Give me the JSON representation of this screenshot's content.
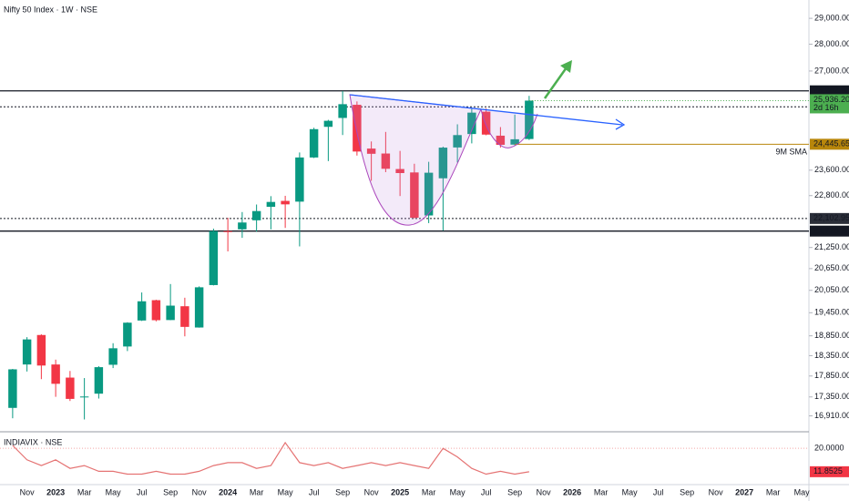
{
  "chart_data": {
    "type": "candlestick",
    "title": "Nifty 50 Index · 1W · NSE",
    "log_scale": true,
    "categories": [
      null,
      "Nov",
      null,
      "2023",
      null,
      "Mar",
      null,
      "May",
      null,
      "Jul",
      null,
      "Sep",
      null,
      "Nov",
      null,
      "2024",
      null,
      "Mar",
      null,
      "May",
      null,
      "Jul",
      null,
      "Sep",
      null,
      "Nov",
      null,
      "2025",
      null,
      "Mar",
      null,
      "May",
      null,
      "Jul",
      null,
      "Sep",
      null,
      "Nov",
      null,
      "2026",
      null,
      "Mar",
      null,
      "May",
      null,
      "Jul",
      null,
      "Sep",
      null,
      "Nov",
      null,
      "2027",
      null,
      "Mar",
      null,
      "May"
    ],
    "open": [
      17094,
      18131,
      18871,
      18131,
      17811,
      17360,
      17427,
      18124,
      18579,
      19246,
      19784,
      19258,
      19622,
      19064,
      20194,
      21727,
      21780,
      22049,
      22455,
      22637,
      22614,
      24010,
      25030,
      25333,
      25789,
      24302,
      24140,
      23637,
      23528,
      22194,
      23342,
      24339,
      24787,
      25550,
      24731,
      24433,
      24620,
      null,
      null,
      null,
      null,
      null,
      null,
      null,
      null,
      null,
      null,
      null,
      null,
      null,
      null,
      null,
      null,
      null,
      null,
      null
    ],
    "high": [
      18022,
      18816,
      18888,
      18251,
      17972,
      17800,
      18089,
      18662,
      19201,
      19992,
      19796,
      20222,
      19850,
      20158,
      21801,
      22125,
      22297,
      22526,
      22783,
      22794,
      24174,
      24999,
      25268,
      26277,
      25908,
      24538,
      24858,
      24226,
      23807,
      23870,
      24365,
      25116,
      25654,
      25669,
      25022,
      25449,
      26104,
      null,
      null,
      null,
      null,
      null,
      null,
      null,
      null,
      null,
      null,
      null,
      null,
      null,
      null,
      null,
      null,
      null,
      null,
      null
    ],
    "low": [
      16855,
      17959,
      17774,
      17353,
      17255,
      16828,
      17312,
      18043,
      18464,
      19234,
      19224,
      19255,
      18837,
      19060,
      20184,
      21137,
      21530,
      21711,
      21778,
      21822,
      21282,
      23992,
      23893,
      24753,
      24073,
      23263,
      23537,
      22787,
      22105,
      21965,
      21743,
      23848,
      24474,
      24745,
      24337,
      24404,
      24588,
      null,
      null,
      null,
      null,
      null,
      null,
      null,
      null,
      null,
      null,
      null,
      null,
      null,
      null,
      null,
      null,
      null,
      null,
      null
    ],
    "close": [
      18012,
      18758,
      18105,
      17662,
      17304,
      17360,
      18065,
      18534,
      19189,
      19754,
      19254,
      19638,
      19080,
      20133,
      21731,
      21726,
      21983,
      22327,
      22605,
      22531,
      24011,
      24951,
      25236,
      25811,
      24205,
      24131,
      23645,
      23508,
      22125,
      23519,
      24334,
      24751,
      25517,
      24768,
      24427,
      24611,
      25936.2,
      null,
      null,
      null,
      null,
      null,
      null,
      null,
      null,
      null,
      null,
      null,
      null,
      null,
      null,
      null,
      null,
      null,
      null,
      null
    ],
    "up_color": "#089981",
    "down_color": "#f23645",
    "ylim": [
      16590,
      29730
    ],
    "yticks": [
      {
        "value": 29000,
        "label": "29,000.00"
      },
      {
        "value": 28000,
        "label": "28,000.00"
      },
      {
        "value": 27000,
        "label": "27,000.00"
      },
      {
        "value": 23600,
        "label": "23,600.00"
      },
      {
        "value": 22800,
        "label": "22,800.00"
      },
      {
        "value": 21250,
        "label": "21,250.00"
      },
      {
        "value": 20650,
        "label": "20,650.00"
      },
      {
        "value": 20050,
        "label": "20,050.00"
      },
      {
        "value": 19450,
        "label": "19,450.00"
      },
      {
        "value": 18850,
        "label": "18,850.00"
      },
      {
        "value": 18350,
        "label": "18,350.00"
      },
      {
        "value": 17850,
        "label": "17,850.00"
      },
      {
        "value": 17350,
        "label": "17,350.00"
      },
      {
        "value": 16910,
        "label": "16,910.00"
      }
    ],
    "levels": [
      {
        "value": 26282.9,
        "label": "26,282.90",
        "style": "solid"
      },
      {
        "value": 25719.25,
        "label": "25,719.25",
        "style": "dotted"
      },
      {
        "value": 22102.95,
        "label": "22,102.95",
        "style": "dotted"
      },
      {
        "value": 21728.2,
        "label": "21,728.20",
        "style": "solid"
      }
    ],
    "last_price": {
      "value": 25936.2,
      "label": "25,936.20",
      "countdown": "2d 16h",
      "color": "#4caf50"
    },
    "sma": {
      "name": "9M SMA",
      "value": 24445.65,
      "label": "24,445.65",
      "color": "#b8860b"
    },
    "indicator": {
      "name": "INDIAVIX · NSE",
      "color": "#e57373",
      "values": [
        21,
        16,
        14,
        16,
        13,
        14,
        12,
        12,
        11,
        11,
        12,
        11,
        11,
        12,
        14,
        15,
        15,
        13,
        14,
        22,
        15,
        14,
        15,
        13,
        14,
        15,
        14,
        15,
        14,
        13,
        20,
        17,
        13,
        11,
        12,
        11,
        11.8525,
        null,
        null,
        null,
        null,
        null,
        null,
        null,
        null,
        null,
        null,
        null,
        null,
        null,
        null,
        null,
        null,
        null,
        null,
        null
      ],
      "ylim": [
        8,
        24.5
      ],
      "yticks": [
        {
          "value": 20,
          "label": "20.0000"
        }
      ]
    }
  }
}
